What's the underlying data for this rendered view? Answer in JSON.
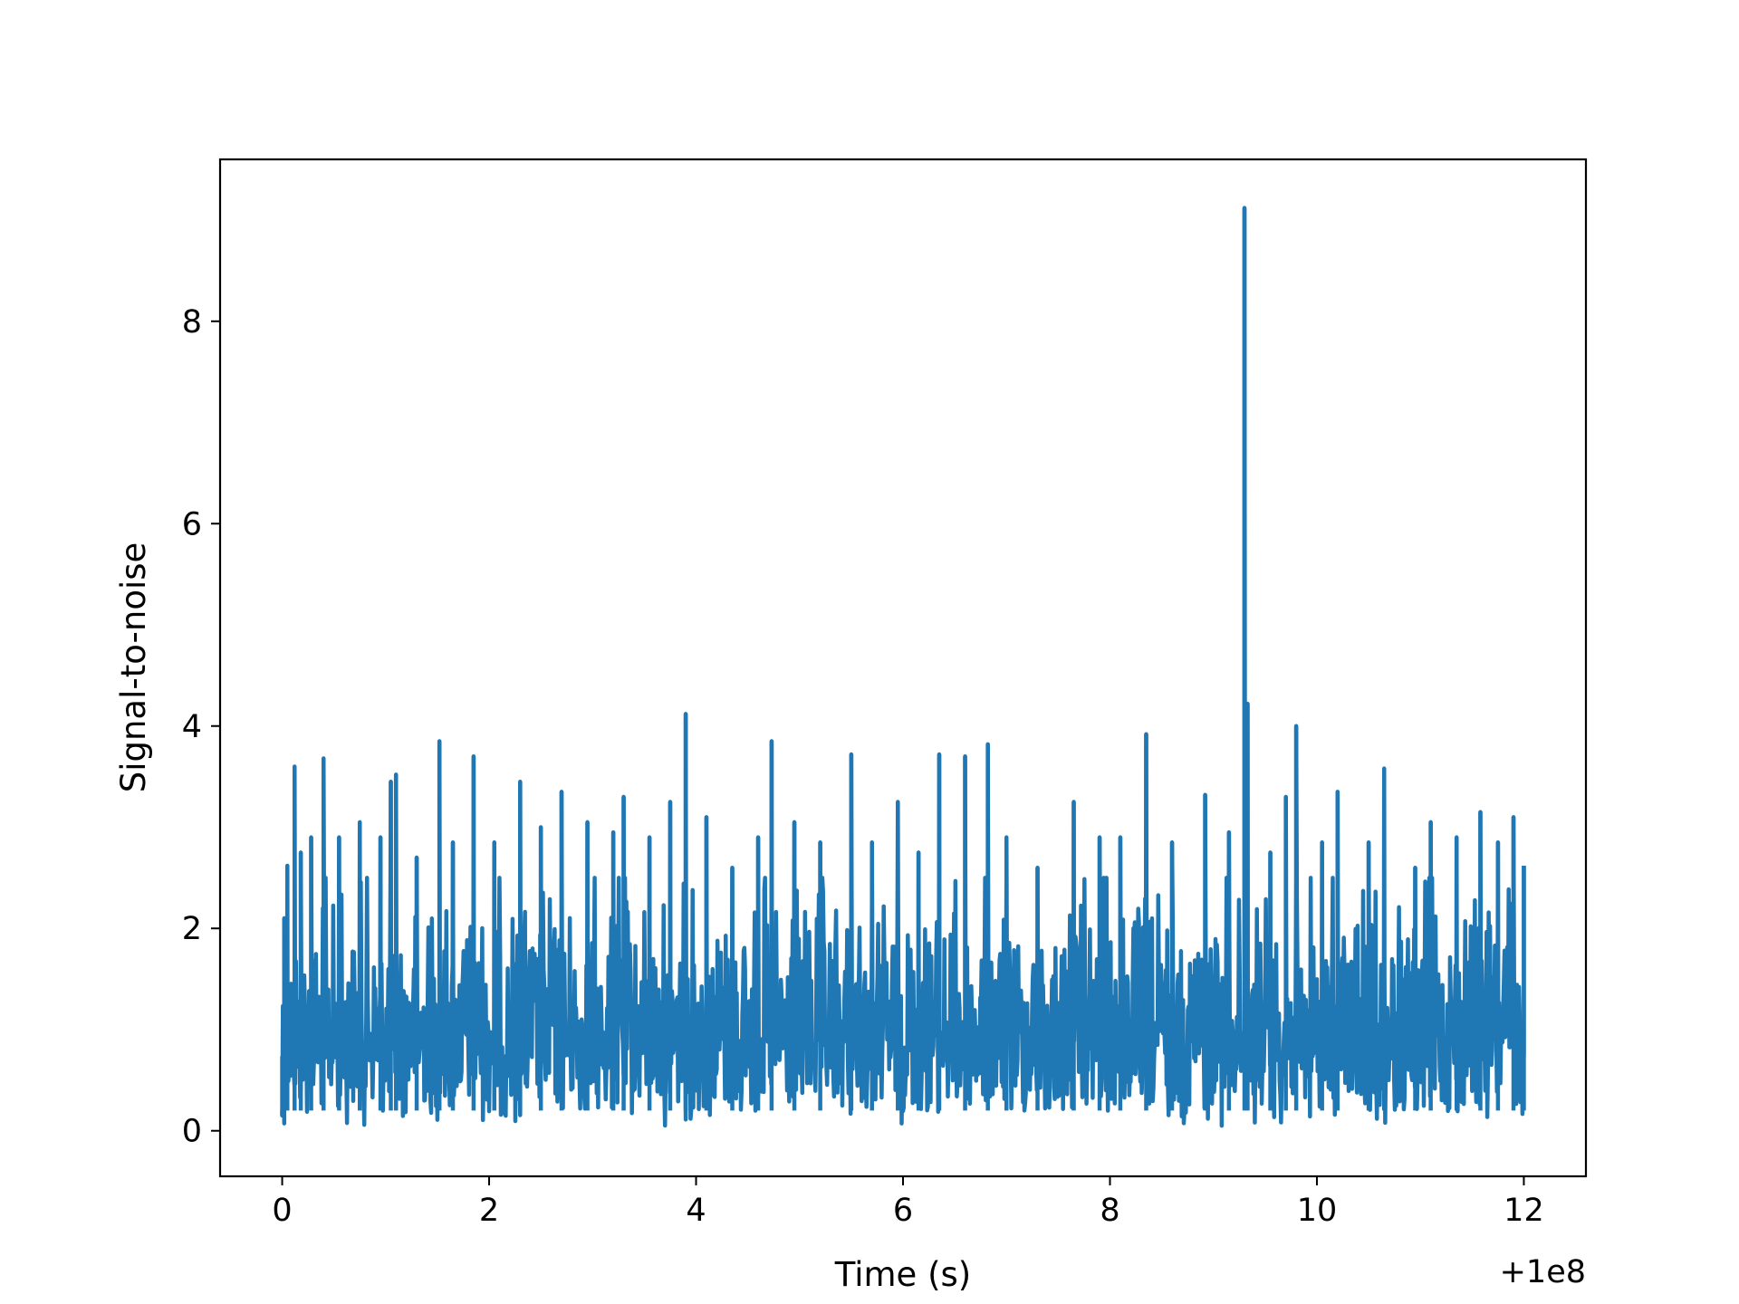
{
  "chart_data": {
    "type": "line",
    "title": "",
    "xlabel": "Time (s)",
    "ylabel": "Signal-to-noise",
    "x_offset_label": "+1e8",
    "xlim": [
      -0.6,
      12.6
    ],
    "ylim": [
      -0.45,
      9.6
    ],
    "x_ticks": [
      {
        "value": 0,
        "label": "0"
      },
      {
        "value": 2,
        "label": "2"
      },
      {
        "value": 4,
        "label": "4"
      },
      {
        "value": 6,
        "label": "6"
      },
      {
        "value": 8,
        "label": "8"
      },
      {
        "value": 10,
        "label": "10"
      },
      {
        "value": 12,
        "label": "12"
      }
    ],
    "y_ticks": [
      {
        "value": 0,
        "label": "0"
      },
      {
        "value": 2,
        "label": "2"
      },
      {
        "value": 4,
        "label": "4"
      },
      {
        "value": 6,
        "label": "6"
      },
      {
        "value": 8,
        "label": "8"
      }
    ],
    "grid": false,
    "line_color": "#1f77b4",
    "series": [
      {
        "x_start": 0,
        "x_end": 12,
        "noise_level": 1.0,
        "points": [
          {
            "x": 0.0,
            "y": 0.15
          },
          {
            "x": 0.02,
            "y": 2.1
          },
          {
            "x": 0.05,
            "y": 2.62
          },
          {
            "x": 0.12,
            "y": 3.6
          },
          {
            "x": 0.18,
            "y": 2.75
          },
          {
            "x": 0.28,
            "y": 2.9
          },
          {
            "x": 0.4,
            "y": 3.68
          },
          {
            "x": 0.55,
            "y": 2.9
          },
          {
            "x": 0.75,
            "y": 3.05
          },
          {
            "x": 0.95,
            "y": 2.9
          },
          {
            "x": 1.05,
            "y": 3.45
          },
          {
            "x": 1.1,
            "y": 3.52
          },
          {
            "x": 1.3,
            "y": 2.7
          },
          {
            "x": 1.52,
            "y": 3.85
          },
          {
            "x": 1.65,
            "y": 2.85
          },
          {
            "x": 1.85,
            "y": 3.7
          },
          {
            "x": 2.05,
            "y": 2.85
          },
          {
            "x": 2.3,
            "y": 3.45
          },
          {
            "x": 2.5,
            "y": 3.0
          },
          {
            "x": 2.7,
            "y": 3.35
          },
          {
            "x": 2.95,
            "y": 3.05
          },
          {
            "x": 3.2,
            "y": 2.95
          },
          {
            "x": 3.3,
            "y": 3.3
          },
          {
            "x": 3.55,
            "y": 2.9
          },
          {
            "x": 3.75,
            "y": 3.25
          },
          {
            "x": 3.9,
            "y": 4.12
          },
          {
            "x": 4.1,
            "y": 3.1
          },
          {
            "x": 4.35,
            "y": 2.6
          },
          {
            "x": 4.6,
            "y": 2.9
          },
          {
            "x": 4.73,
            "y": 3.85
          },
          {
            "x": 4.95,
            "y": 3.05
          },
          {
            "x": 5.2,
            "y": 2.85
          },
          {
            "x": 5.5,
            "y": 3.72
          },
          {
            "x": 5.7,
            "y": 2.85
          },
          {
            "x": 5.95,
            "y": 3.25
          },
          {
            "x": 6.15,
            "y": 2.75
          },
          {
            "x": 6.35,
            "y": 3.72
          },
          {
            "x": 6.6,
            "y": 3.7
          },
          {
            "x": 6.82,
            "y": 3.82
          },
          {
            "x": 7.0,
            "y": 2.9
          },
          {
            "x": 7.3,
            "y": 2.6
          },
          {
            "x": 7.65,
            "y": 3.25
          },
          {
            "x": 7.9,
            "y": 2.9
          },
          {
            "x": 8.1,
            "y": 2.9
          },
          {
            "x": 8.35,
            "y": 3.92
          },
          {
            "x": 8.6,
            "y": 2.85
          },
          {
            "x": 8.92,
            "y": 3.32
          },
          {
            "x": 9.15,
            "y": 2.95
          },
          {
            "x": 9.3,
            "y": 9.12
          },
          {
            "x": 9.33,
            "y": 4.22
          },
          {
            "x": 9.55,
            "y": 2.75
          },
          {
            "x": 9.7,
            "y": 3.3
          },
          {
            "x": 9.8,
            "y": 4.0
          },
          {
            "x": 10.05,
            "y": 2.85
          },
          {
            "x": 10.2,
            "y": 3.35
          },
          {
            "x": 10.5,
            "y": 2.85
          },
          {
            "x": 10.65,
            "y": 3.58
          },
          {
            "x": 10.95,
            "y": 2.6
          },
          {
            "x": 11.1,
            "y": 3.05
          },
          {
            "x": 11.35,
            "y": 2.9
          },
          {
            "x": 11.58,
            "y": 3.15
          },
          {
            "x": 11.75,
            "y": 2.85
          },
          {
            "x": 11.9,
            "y": 3.1
          },
          {
            "x": 12.0,
            "y": 2.62
          }
        ]
      }
    ]
  }
}
